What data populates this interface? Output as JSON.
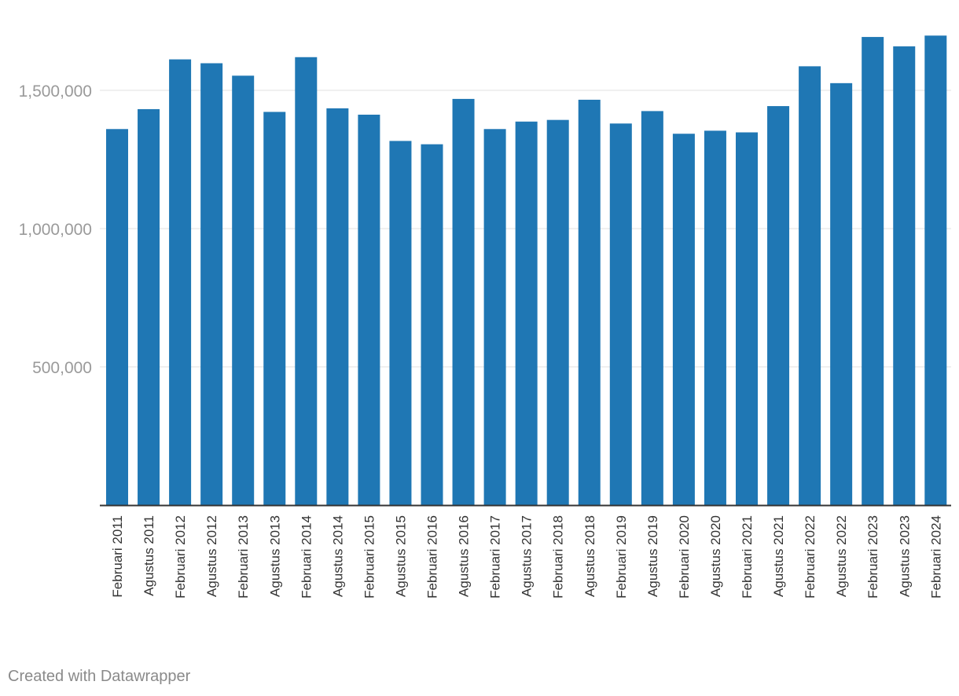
{
  "chart_data": {
    "type": "bar",
    "categories": [
      "Februari 2011",
      "Agustus 2011",
      "Februari 2012",
      "Agustus 2012",
      "Februari 2013",
      "Agustus 2013",
      "Februari 2014",
      "Agustus 2014",
      "Februari 2015",
      "Agustus 2015",
      "Februari 2016",
      "Agustus 2016",
      "Februari 2017",
      "Agustus 2017",
      "Februari 2018",
      "Agustus 2018",
      "Februari 2019",
      "Agustus 2019",
      "Februari 2020",
      "Agustus 2020",
      "Februari 2021",
      "Agustus 2021",
      "Februari 2022",
      "Agustus 2022",
      "Februari 2023",
      "Agustus 2023",
      "Februari 2024"
    ],
    "values": [
      1360000,
      1432000,
      1612000,
      1598000,
      1553000,
      1422000,
      1620000,
      1435000,
      1412000,
      1317000,
      1305000,
      1469000,
      1360000,
      1387000,
      1393000,
      1466000,
      1380000,
      1425000,
      1343000,
      1354000,
      1348000,
      1443000,
      1587000,
      1526000,
      1693000,
      1659000,
      1698000
    ],
    "yticks": [
      500000,
      1000000,
      1500000
    ],
    "ytick_labels": [
      "500,000",
      "1,000,000",
      "1,500,000"
    ],
    "ylim": [
      0,
      1500000
    ],
    "grid": true,
    "bar_color": "#1f77b4",
    "title": "",
    "xlabel": "",
    "ylabel": ""
  },
  "footer": {
    "credit": "Created with Datawrapper"
  }
}
